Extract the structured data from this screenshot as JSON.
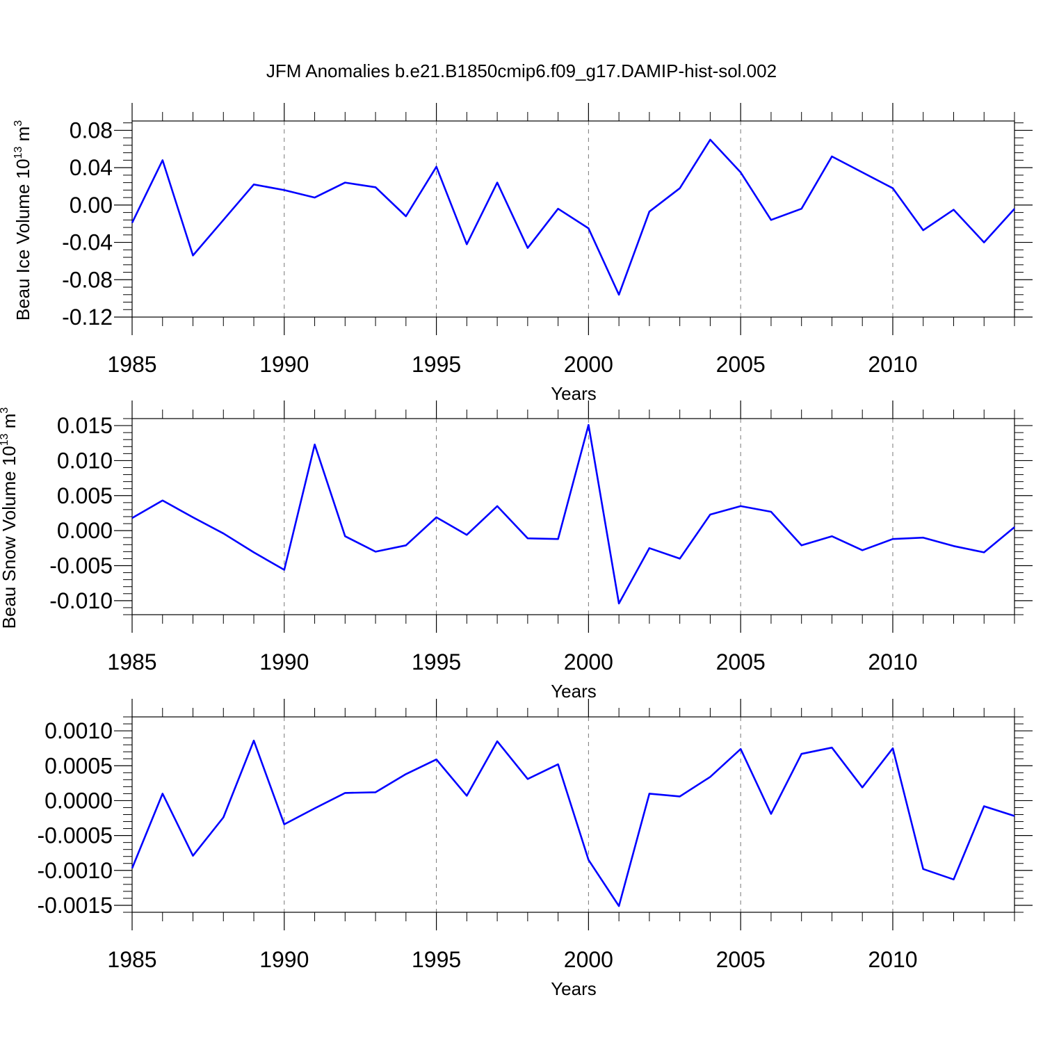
{
  "title": "JFM Anomalies b.e21.B1850cmip6.f09_g17.DAMIP-hist-sol.002",
  "series_color": "#0000ff",
  "chart_data": [
    {
      "type": "line",
      "ylabel": "Beau Ice Volume 10",
      "ylabel_exp": "13",
      "ylabel_unit": " m",
      "ylabel_unit_exp": "3",
      "xlabel": "Years",
      "xlim": [
        1985,
        2014
      ],
      "ylim": [
        -0.12,
        0.09
      ],
      "yticks": [
        -0.12,
        -0.08,
        -0.04,
        0.0,
        0.04,
        0.08
      ],
      "yticklabels": [
        "-0.12",
        "-0.08",
        "-0.04",
        "0.00",
        "0.04",
        "0.08"
      ],
      "xticks": [
        1985,
        1990,
        1995,
        2000,
        2005,
        2010
      ],
      "xticklabels": [
        "1985",
        "1990",
        "1995",
        "2000",
        "2005",
        "2010"
      ],
      "x": [
        1985,
        1986,
        1987,
        1988,
        1989,
        1990,
        1991,
        1992,
        1993,
        1994,
        1995,
        1996,
        1997,
        1998,
        1999,
        2000,
        2001,
        2002,
        2003,
        2004,
        2005,
        2006,
        2007,
        2008,
        2009,
        2010,
        2011,
        2012,
        2013,
        2014
      ],
      "y": [
        -0.019,
        0.048,
        -0.054,
        -0.016,
        0.022,
        0.016,
        0.008,
        0.024,
        0.019,
        -0.012,
        0.041,
        -0.042,
        0.024,
        -0.046,
        -0.004,
        -0.025,
        -0.096,
        -0.007,
        0.018,
        0.07,
        0.035,
        -0.016,
        -0.004,
        0.052,
        0.035,
        0.018,
        -0.027,
        -0.005,
        -0.04,
        -0.004
      ]
    },
    {
      "type": "line",
      "ylabel": "Beau Snow Volume 10",
      "ylabel_exp": "13",
      "ylabel_unit": " m",
      "ylabel_unit_exp": "3",
      "xlabel": "Years",
      "xlim": [
        1985,
        2014
      ],
      "ylim": [
        -0.012,
        0.016
      ],
      "yticks": [
        -0.01,
        -0.005,
        0.0,
        0.005,
        0.01,
        0.015
      ],
      "yticklabels": [
        "-0.010",
        "-0.005",
        "0.000",
        "0.005",
        "0.010",
        "0.015"
      ],
      "xticks": [
        1985,
        1990,
        1995,
        2000,
        2005,
        2010
      ],
      "xticklabels": [
        "1985",
        "1990",
        "1995",
        "2000",
        "2005",
        "2010"
      ],
      "x": [
        1985,
        1986,
        1987,
        1988,
        1989,
        1990,
        1991,
        1992,
        1993,
        1994,
        1995,
        1996,
        1997,
        1998,
        1999,
        2000,
        2001,
        2002,
        2003,
        2004,
        2005,
        2006,
        2007,
        2008,
        2009,
        2010,
        2011,
        2012,
        2013,
        2014
      ],
      "y": [
        0.0018,
        0.0043,
        0.0019,
        -0.0004,
        -0.0031,
        -0.0056,
        0.0123,
        -0.0008,
        -0.003,
        -0.0021,
        0.0019,
        -0.0006,
        0.0035,
        -0.0011,
        -0.0012,
        0.0151,
        -0.0104,
        -0.0025,
        -0.004,
        0.0023,
        0.0035,
        0.0027,
        -0.0021,
        -0.0008,
        -0.0028,
        -0.0012,
        -0.001,
        -0.0022,
        -0.0031,
        0.0005
      ]
    },
    {
      "type": "line",
      "ylabel": "",
      "xlabel": "Years",
      "xlim": [
        1985,
        2014
      ],
      "ylim": [
        -0.0016,
        0.0012
      ],
      "yticks": [
        -0.0015,
        -0.001,
        -0.0005,
        0.0,
        0.0005,
        0.001
      ],
      "yticklabels": [
        "-0.0015",
        "-0.0010",
        "-0.0005",
        "0.0000",
        "0.0005",
        "0.0010"
      ],
      "xticks": [
        1985,
        1990,
        1995,
        2000,
        2005,
        2010
      ],
      "xticklabels": [
        "1985",
        "1990",
        "1995",
        "2000",
        "2005",
        "2010"
      ],
      "x": [
        1985,
        1986,
        1987,
        1988,
        1989,
        1990,
        1991,
        1992,
        1993,
        1994,
        1995,
        1996,
        1997,
        1998,
        1999,
        2000,
        2001,
        2002,
        2003,
        2004,
        2005,
        2006,
        2007,
        2008,
        2009,
        2010,
        2011,
        2012,
        2013,
        2014
      ],
      "y": [
        -0.00097,
        0.0001,
        -0.00079,
        -0.00024,
        0.00086,
        -0.00034,
        -0.00011,
        0.00011,
        0.00012,
        0.00038,
        0.00059,
        7e-05,
        0.00085,
        0.00031,
        0.00052,
        -0.00085,
        -0.00151,
        0.0001,
        6e-05,
        0.00034,
        0.00074,
        -0.00019,
        0.00067,
        0.00076,
        0.00019,
        0.00075,
        -0.00098,
        -0.00113,
        -8e-05,
        -0.00022
      ]
    }
  ]
}
